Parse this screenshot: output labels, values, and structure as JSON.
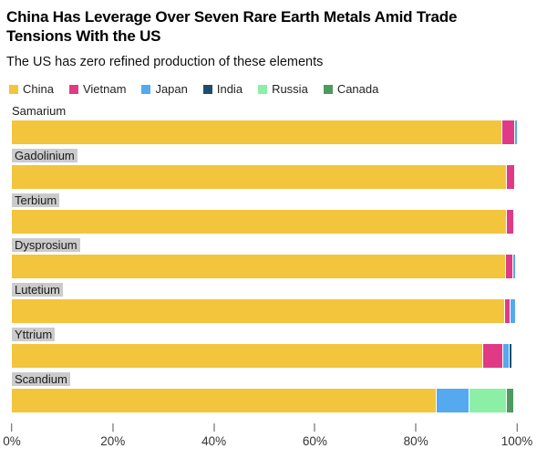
{
  "header": {
    "title_line1": "China Has Leverage Over Seven Rare Earth Metals Amid Trade",
    "title_line2": "Tensions With the US",
    "subtitle": "The US has zero refined production of these elements"
  },
  "chart_data": {
    "type": "bar",
    "orientation": "horizontal",
    "stacked": true,
    "unit": "percent",
    "xlim": [
      0,
      100
    ],
    "x_ticks": [
      "0%",
      "20%",
      "40%",
      "60%",
      "80%",
      "100%"
    ],
    "legend_position": "top",
    "grid": false,
    "legend": [
      {
        "label": "China",
        "color": "#F2C53D"
      },
      {
        "label": "Vietnam",
        "color": "#E03A86"
      },
      {
        "label": "Japan",
        "color": "#55A9EF"
      },
      {
        "label": "India",
        "color": "#1E4D6B"
      },
      {
        "label": "Russia",
        "color": "#8CEFA6"
      },
      {
        "label": "Canada",
        "color": "#4F9A5F"
      }
    ],
    "rows": [
      {
        "element": "Samarium",
        "label_highlighted": false,
        "segments": [
          {
            "name": "China",
            "value": 96.9
          },
          {
            "name": "Vietnam",
            "value": 2.5
          },
          {
            "name": "Japan",
            "value": 0.6
          }
        ]
      },
      {
        "element": "Gadolinium",
        "label_highlighted": true,
        "segments": [
          {
            "name": "China",
            "value": 97.9
          },
          {
            "name": "Vietnam",
            "value": 1.6
          }
        ]
      },
      {
        "element": "Terbium",
        "label_highlighted": true,
        "segments": [
          {
            "name": "China",
            "value": 97.8
          },
          {
            "name": "Vietnam",
            "value": 1.5
          }
        ]
      },
      {
        "element": "Dysprosium",
        "label_highlighted": true,
        "segments": [
          {
            "name": "China",
            "value": 97.6
          },
          {
            "name": "Vietnam",
            "value": 1.5
          },
          {
            "name": "Japan",
            "value": 0.5
          }
        ]
      },
      {
        "element": "Lutetium",
        "label_highlighted": true,
        "segments": [
          {
            "name": "China",
            "value": 97.4
          },
          {
            "name": "Vietnam",
            "value": 1.2
          },
          {
            "name": "Japan",
            "value": 1.1
          }
        ]
      },
      {
        "element": "Yttrium",
        "label_highlighted": true,
        "segments": [
          {
            "name": "China",
            "value": 93.1
          },
          {
            "name": "Vietnam",
            "value": 4.0
          },
          {
            "name": "Japan",
            "value": 1.3
          },
          {
            "name": "India",
            "value": 0.5
          }
        ]
      },
      {
        "element": "Scandium",
        "label_highlighted": true,
        "segments": [
          {
            "name": "China",
            "value": 84.0
          },
          {
            "name": "Japan",
            "value": 6.5
          },
          {
            "name": "Russia",
            "value": 7.3
          },
          {
            "name": "Canada",
            "value": 1.4
          }
        ]
      }
    ]
  }
}
